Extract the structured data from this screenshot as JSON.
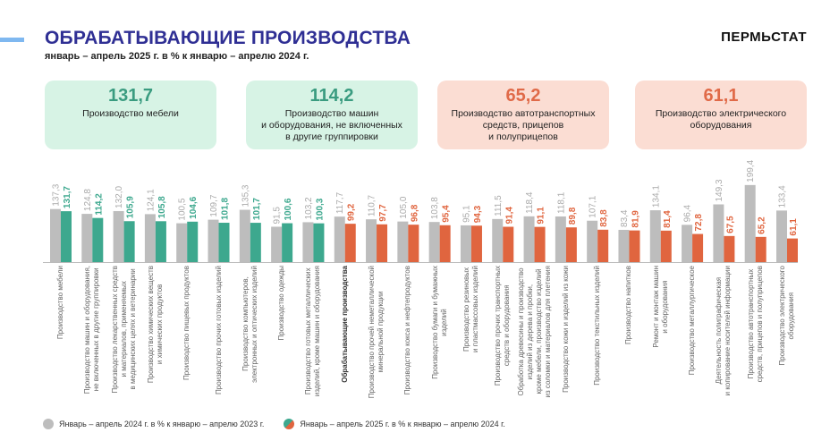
{
  "header": {
    "title": "ОБРАБАТЫВАЮЩИЕ ПРОИЗВОДСТВА",
    "subtitle": "январь – апрель 2025 г. в % к январю – апрелю 2024 г.",
    "brand": "ПЕРМЬСТАТ"
  },
  "cards": [
    {
      "value": "131,7",
      "label": "Производство мебели",
      "tone": "green"
    },
    {
      "value": "114,2",
      "label": "Производство машин\nи оборудования, не включенных\nв другие группировки",
      "tone": "green"
    },
    {
      "value": "65,2",
      "label": "Производство автотранспортных\nсредств, прицепов\nи полуприцепов",
      "tone": "red"
    },
    {
      "value": "61,1",
      "label": "Производство электрического\nоборудования",
      "tone": "red"
    }
  ],
  "colors": {
    "prev": "#bdbdbd",
    "up": "#3da88e",
    "down": "#e0653f",
    "title": "#2f2f94"
  },
  "legend": {
    "prev": "Январь – апрель 2024 г. в % к январю – апрелю 2023 г.",
    "curr": "Январь – апрель 2025 г. в % к январю – апрелю 2024 г."
  },
  "chart_data": {
    "type": "bar",
    "ylim": [
      0,
      200
    ],
    "grid": false,
    "legend_position": "bottom-left",
    "categories": [
      "Производство мебели",
      "Производство машин и оборудования,\nне включенных в другие группировки",
      "Производство лекарственных средств\nи материалов, применяемых\nв медицинских целях и ветеринарии",
      "Производство химических веществ\nи химических продуктов",
      "Производство пищевых продуктов",
      "Производство прочих готовых изделий",
      "Производство компьютеров,\nэлектронных и оптических изделий",
      "Производство одежды",
      "Производство готовых металлических\nизделий, кроме машин и оборудования",
      "Обрабатывающие производства",
      "Производство прочей неметаллической\nминеральной продукции",
      "Производство кокса и нефтепродуктов",
      "Производство бумаги и бумажных\nизделий",
      "Производство резиновых\nи пластмассовых изделий",
      "Производство прочих транспортных\nсредств и оборудования",
      "Обработка древесины и производство\nизделий из дерева и пробки,\nкроме мебели, производство изделий\nиз соломки и материалов для плетения",
      "Производство кожи и изделий из кожи",
      "Производство текстильных изделий",
      "Производство напитков",
      "Ремонт и монтаж машин\nи оборудования",
      "Производство металлургическое",
      "Деятельность полиграфическая\nи копирование носителей информации",
      "Производство автотранспортных\nсредств, прицепов и полуприцепов",
      "Производство электрического\nоборудования"
    ],
    "series": [
      {
        "name": "Январь – апрель 2024 г. в % к январю – апрелю 2023 г.",
        "values": [
          137.3,
          124.8,
          132.0,
          124.1,
          100.5,
          109.7,
          135.3,
          91.5,
          103.2,
          117.7,
          110.7,
          105.0,
          103.8,
          95.1,
          111.5,
          118.4,
          118.1,
          107.1,
          83.4,
          134.1,
          96.4,
          149.3,
          199.4,
          133.4
        ]
      },
      {
        "name": "Январь – апрель 2025 г. в % к январю – апрелю 2024 г.",
        "values": [
          131.7,
          114.2,
          105.9,
          105.8,
          104.6,
          101.8,
          101.7,
          100.6,
          100.3,
          99.2,
          97.7,
          96.8,
          95.4,
          94.3,
          91.4,
          91.1,
          89.8,
          83.8,
          81.9,
          81.4,
          72.8,
          67.5,
          65.2,
          61.1
        ]
      }
    ],
    "highlight_category": "Обрабатывающие производства"
  }
}
